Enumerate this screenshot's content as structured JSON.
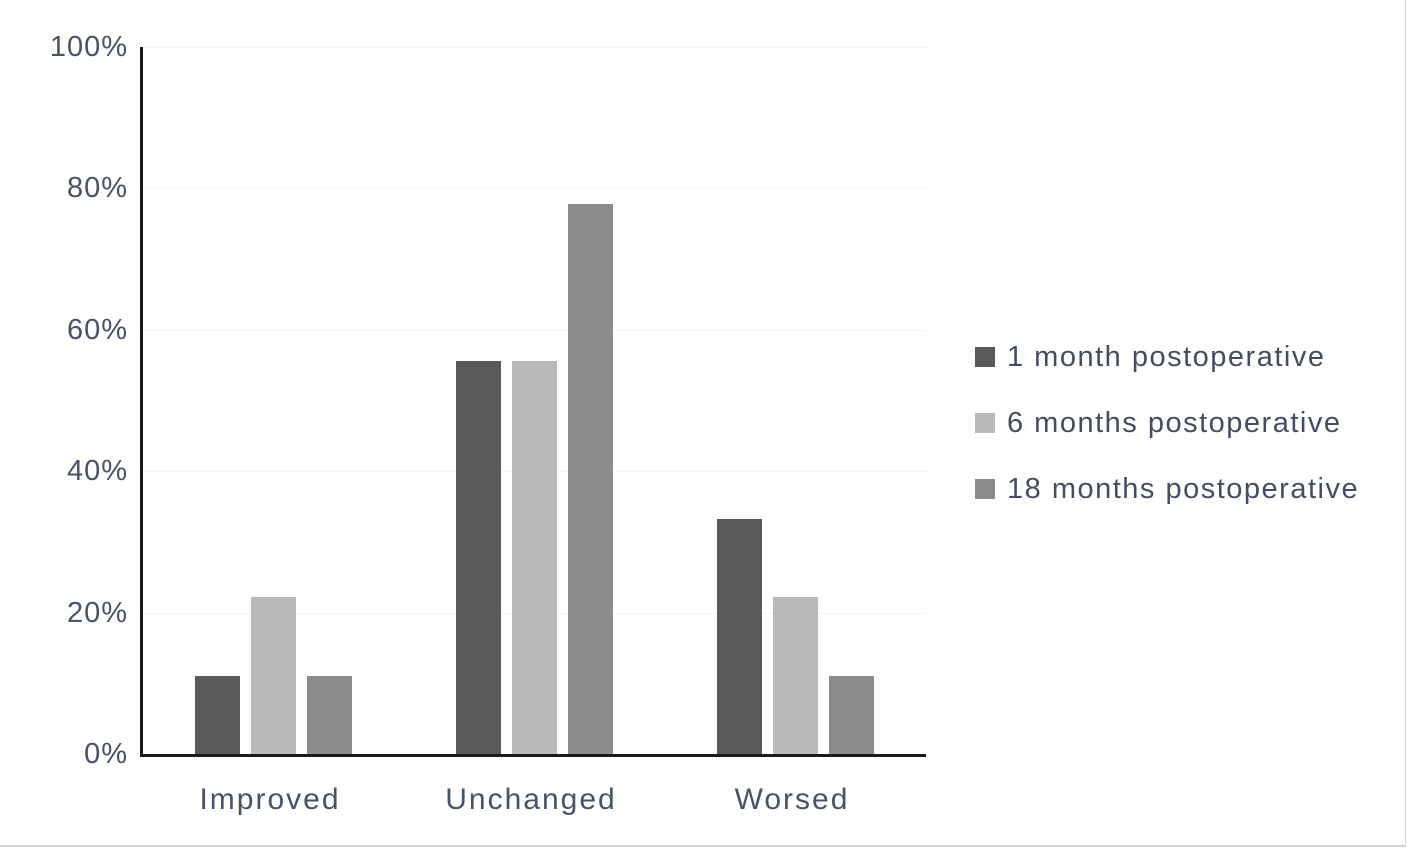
{
  "figure": {
    "background": "#ffffff",
    "frame_border_color": "#d9d9d9"
  },
  "chart_data": {
    "type": "bar",
    "title": "",
    "xlabel": "",
    "ylabel": "",
    "categories": [
      "Improved",
      "Unchanged",
      "Worsed"
    ],
    "series": [
      {
        "name": "1 month postoperative",
        "color": "#595959",
        "values": [
          11.1,
          55.6,
          33.3
        ]
      },
      {
        "name": "6 months postoperative",
        "color": "#b9b9b9",
        "values": [
          22.2,
          55.6,
          22.2
        ]
      },
      {
        "name": "18 months postoperative",
        "color": "#8c8c8c",
        "values": [
          11.1,
          77.8,
          11.1
        ]
      }
    ],
    "ylim": [
      0,
      100
    ],
    "ytick_values": [
      0,
      20,
      40,
      60,
      80,
      100
    ],
    "ytick_labels": [
      "0%",
      "20%",
      "40%",
      "60%",
      "80%",
      "100%"
    ],
    "grid": "faint",
    "gridline_color": "#f5f5f5",
    "legend_position": "right",
    "axis_color": "#1a1a1a",
    "tick_label_color": "#4a5266"
  }
}
